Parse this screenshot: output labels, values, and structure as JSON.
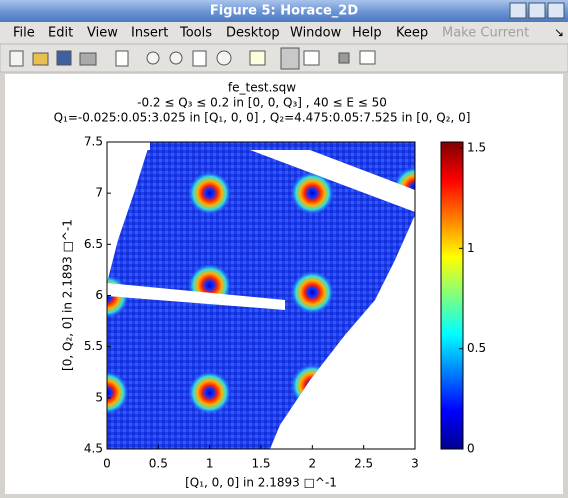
{
  "window": {
    "title": "Figure 5: Horace_2D"
  },
  "menu": [
    "File",
    "Edit",
    "View",
    "Insert",
    "Tools",
    "Desktop",
    "Window",
    "Help",
    "Keep",
    "Make Current"
  ],
  "chart_data": {
    "type": "heatmap",
    "title": "fe_test.sqw",
    "subtitle": [
      "-0.2 ≤ Q₃ ≤ 0.2 in [0, 0, Q₃] , 40 ≤ E ≤ 50",
      "Q₁=-0.025:0.05:3.025 in [Q₁, 0, 0] , Q₂=4.475:0.05:7.525 in [0, Q₂, 0]"
    ],
    "xlabel": "[Q₁, 0, 0] in 2.1893 □^-1",
    "ylabel": "[0, Q₂, 0] in 2.1893 □^-1",
    "xlim": [
      0,
      3
    ],
    "xticks": [
      0,
      0.5,
      1,
      1.5,
      2,
      2.5,
      3
    ],
    "ylim": [
      4.5,
      7.5
    ],
    "yticks": [
      4.5,
      5,
      5.5,
      6,
      6.5,
      7,
      7.5
    ],
    "clim": [
      0,
      1.53
    ],
    "cticks": [
      0,
      0.5,
      1,
      1.5
    ],
    "peaks": {
      "x": [
        1,
        2,
        3,
        0,
        1,
        2,
        0,
        1,
        2
      ],
      "y": [
        7,
        7,
        7.05,
        5.99,
        6.1,
        6.03,
        5.05,
        5.05,
        5.12
      ]
    }
  }
}
